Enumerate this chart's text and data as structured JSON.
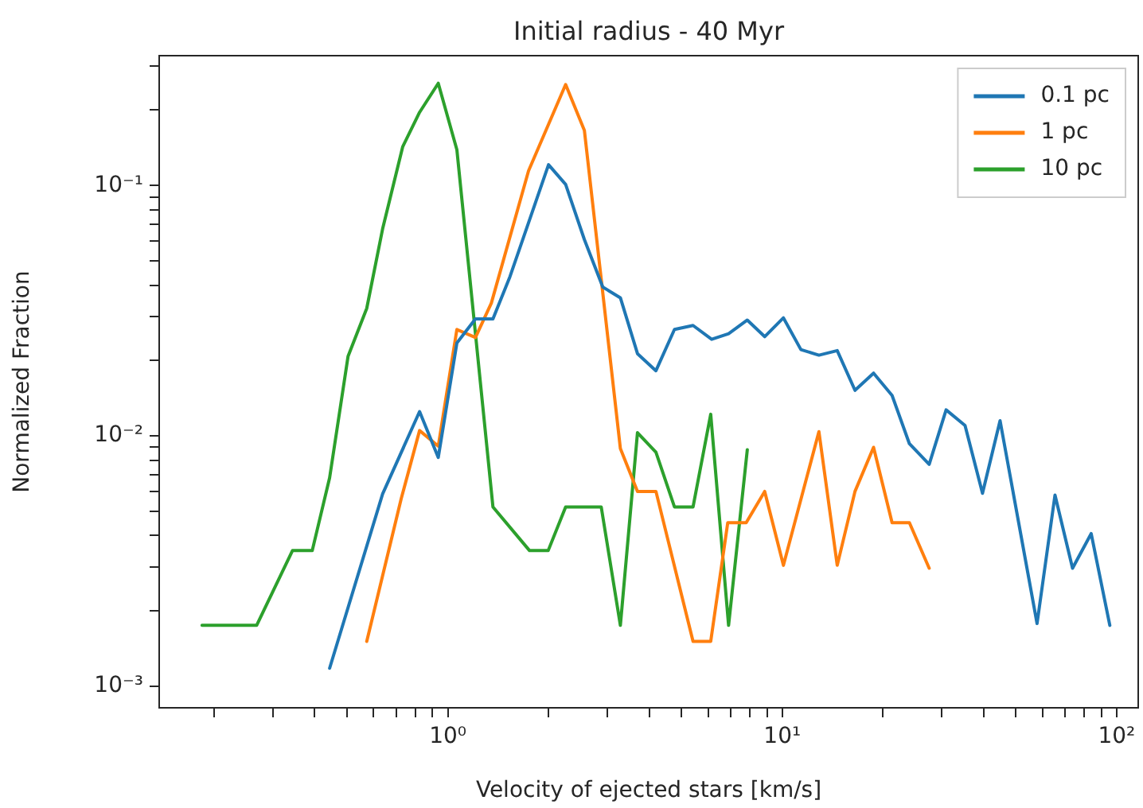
{
  "chart_data": {
    "type": "line",
    "title": "Initial radius - 40 Myr",
    "xlabel": "Velocity of ejected stars [km/s]",
    "ylabel": "Normalized Fraction",
    "log": "xy",
    "grid": false,
    "legend": "top right",
    "line_style": "solid",
    "marker": "none",
    "xlim": [
      0.137,
      116
    ],
    "ylim": [
      0.00082,
      0.33
    ],
    "xticks": [
      {
        "value": 0.2,
        "label": null
      },
      {
        "value": 0.3,
        "label": null
      },
      {
        "value": 0.4,
        "label": null
      },
      {
        "value": 0.5,
        "label": null
      },
      {
        "value": 0.6,
        "label": null
      },
      {
        "value": 0.7,
        "label": null
      },
      {
        "value": 0.8,
        "label": null
      },
      {
        "value": 0.9,
        "label": null
      },
      {
        "value": 1,
        "label": "10⁰"
      },
      {
        "value": 2,
        "label": null
      },
      {
        "value": 3,
        "label": null
      },
      {
        "value": 4,
        "label": null
      },
      {
        "value": 5,
        "label": null
      },
      {
        "value": 6,
        "label": null
      },
      {
        "value": 7,
        "label": null
      },
      {
        "value": 8,
        "label": null
      },
      {
        "value": 9,
        "label": null
      },
      {
        "value": 10,
        "label": "10¹"
      },
      {
        "value": 20,
        "label": null
      },
      {
        "value": 30,
        "label": null
      },
      {
        "value": 40,
        "label": null
      },
      {
        "value": 50,
        "label": null
      },
      {
        "value": 60,
        "label": null
      },
      {
        "value": 70,
        "label": null
      },
      {
        "value": 80,
        "label": null
      },
      {
        "value": 90,
        "label": null
      },
      {
        "value": 100,
        "label": "10²"
      }
    ],
    "yticks": [
      {
        "value": 0.001,
        "label": "10⁻³"
      },
      {
        "value": 0.002,
        "label": null
      },
      {
        "value": 0.003,
        "label": null
      },
      {
        "value": 0.004,
        "label": null
      },
      {
        "value": 0.005,
        "label": null
      },
      {
        "value": 0.006,
        "label": null
      },
      {
        "value": 0.007,
        "label": null
      },
      {
        "value": 0.008,
        "label": null
      },
      {
        "value": 0.009,
        "label": null
      },
      {
        "value": 0.01,
        "label": "10⁻²"
      },
      {
        "value": 0.02,
        "label": null
      },
      {
        "value": 0.03,
        "label": null
      },
      {
        "value": 0.04,
        "label": null
      },
      {
        "value": 0.05,
        "label": null
      },
      {
        "value": 0.06,
        "label": null
      },
      {
        "value": 0.07,
        "label": null
      },
      {
        "value": 0.08,
        "label": null
      },
      {
        "value": 0.09,
        "label": null
      },
      {
        "value": 0.1,
        "label": "10⁻¹"
      },
      {
        "value": 0.2,
        "label": null
      },
      {
        "value": 0.3,
        "label": null
      }
    ],
    "series": [
      {
        "name": "0.1 pc",
        "color": "#1f77b4",
        "x": [
          0.443,
          0.638,
          0.823,
          0.936,
          1.064,
          1.209,
          1.364,
          1.534,
          2.0,
          2.25,
          2.56,
          2.906,
          3.28,
          3.69,
          4.19,
          4.76,
          5.41,
          6.15,
          6.91,
          7.86,
          8.86,
          10.08,
          11.37,
          12.87,
          14.6,
          16.5,
          18.75,
          21.3,
          24.0,
          27.5,
          30.9,
          35.2,
          39.7,
          44.8,
          57.8,
          65.4,
          73.8,
          83.9,
          95.4
        ],
        "values": [
          0.00118,
          0.00586,
          0.0125,
          0.0082,
          0.0235,
          0.0293,
          0.0293,
          0.0433,
          0.121,
          0.101,
          0.0608,
          0.0393,
          0.0356,
          0.0213,
          0.0182,
          0.0266,
          0.0276,
          0.0243,
          0.0256,
          0.029,
          0.0249,
          0.0296,
          0.0221,
          0.021,
          0.0219,
          0.0152,
          0.0178,
          0.0145,
          0.0093,
          0.0077,
          0.0127,
          0.011,
          0.0059,
          0.0115,
          0.00178,
          0.0058,
          0.00296,
          0.00407,
          0.00175
        ]
      },
      {
        "name": "1 pc",
        "color": "#ff7f0e",
        "x": [
          0.572,
          0.725,
          0.823,
          0.936,
          1.064,
          1.209,
          1.349,
          1.743,
          2.25,
          2.56,
          3.28,
          3.69,
          4.19,
          5.41,
          6.11,
          6.87,
          7.8,
          8.86,
          10.08,
          12.87,
          14.6,
          16.5,
          18.75,
          21.3,
          24.0,
          27.5
        ],
        "values": [
          0.00151,
          0.0056,
          0.0105,
          0.0091,
          0.0266,
          0.0247,
          0.0339,
          0.1145,
          0.253,
          0.166,
          0.0089,
          0.006,
          0.006,
          0.00151,
          0.00151,
          0.0045,
          0.0045,
          0.006,
          0.00304,
          0.0104,
          0.00304,
          0.006,
          0.009,
          0.0045,
          0.0045,
          0.00296
        ]
      },
      {
        "name": "10 pc",
        "color": "#2ca02c",
        "x": [
          0.184,
          0.268,
          0.343,
          0.393,
          0.443,
          0.503,
          0.572,
          0.638,
          0.733,
          0.823,
          0.936,
          1.064,
          1.364,
          1.755,
          1.995,
          2.25,
          2.875,
          3.28,
          3.69,
          4.19,
          4.76,
          5.41,
          6.11,
          6.91,
          7.86
        ],
        "values": [
          0.00175,
          0.00175,
          0.00348,
          0.00348,
          0.0068,
          0.0208,
          0.0323,
          0.0671,
          0.143,
          0.196,
          0.256,
          0.139,
          0.0052,
          0.00348,
          0.00348,
          0.0052,
          0.0052,
          0.00175,
          0.0103,
          0.0086,
          0.0052,
          0.0052,
          0.0122,
          0.00175,
          0.0088
        ]
      }
    ]
  }
}
